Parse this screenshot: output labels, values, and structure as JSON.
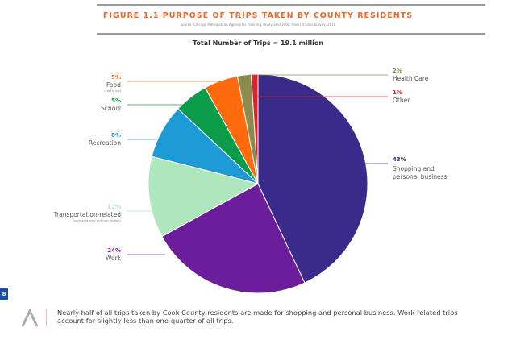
{
  "header": {
    "title": "FIGURE 1.1  PURPOSE OF TRIPS TAKEN BY COUNTY RESIDENTS",
    "source": "Source: Chicago Metropolitan Agency for Planning, Analysis of 2008 Travel Tracker Survey, 2010"
  },
  "chart_data": {
    "type": "pie",
    "title": "Total Number of Trips = 19.1 million",
    "slices": [
      {
        "label": "Shopping and personal business",
        "value": 43,
        "pct": "43%",
        "color": "#3a2a8a",
        "side": "right"
      },
      {
        "label": "Work",
        "value": 24,
        "pct": "24%",
        "color": "#6c1d9c",
        "side": "left"
      },
      {
        "label": "Transportation-related",
        "sublabel": "(such as driving to a train station)",
        "value": 12,
        "pct": "12%",
        "color": "#aee6bd",
        "side": "left"
      },
      {
        "label": "Recreation",
        "value": 8,
        "pct": "8%",
        "color": "#1b9ad6",
        "side": "left"
      },
      {
        "label": "School",
        "value": 5,
        "pct": "5%",
        "color": "#0b9c4a",
        "side": "left"
      },
      {
        "label": "Food",
        "sublabel": "(eating out)",
        "value": 5,
        "pct": "5%",
        "color": "#ff6a0d",
        "side": "left"
      },
      {
        "label": "Health Care",
        "value": 2,
        "pct": "2%",
        "color": "#8c8b4e",
        "side": "right"
      },
      {
        "label": "Other",
        "value": 1,
        "pct": "1%",
        "color": "#e0202a",
        "side": "right"
      }
    ],
    "start": "top",
    "direction": "clockwise"
  },
  "page_number": "8",
  "caption": "Nearly half of all trips taken by Cook County residents are made for shopping and personal business. Work-related trips account for slightly less than one-quarter of all trips."
}
